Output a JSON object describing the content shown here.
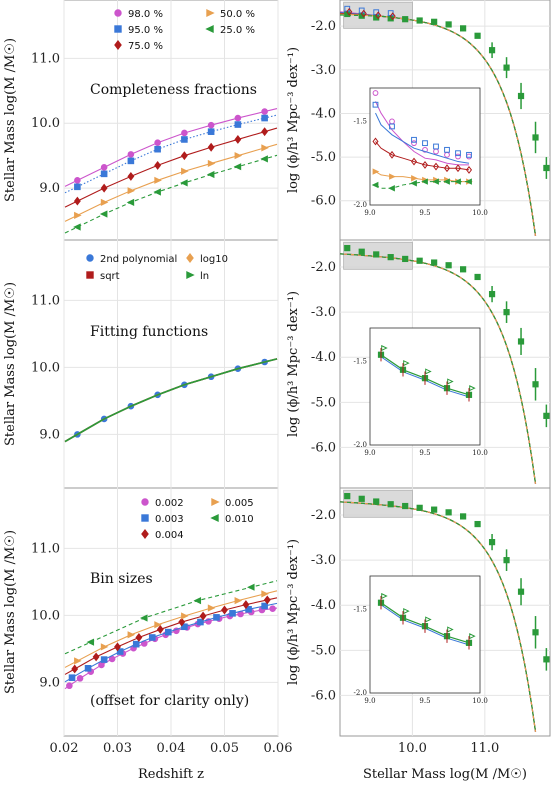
{
  "figure": {
    "xlabel_left": "Redshift z",
    "xlabel_right": "Stellar Mass log(M /M☉)",
    "ylabel_left": "Stellar Mass log(M /M☉)",
    "ylabel_right": "log (ϕ/h³ Mpc⁻³ dex⁻¹)"
  },
  "chart_data": [
    {
      "type": "line",
      "panel": "top-left",
      "annotation": "Completeness fractions",
      "xlim": [
        0.02,
        0.06
      ],
      "ylim": [
        8.2,
        11.9
      ],
      "xticks": [
        0.02,
        0.03,
        0.04,
        0.05,
        0.06
      ],
      "yticks": [
        "9.0",
        "10.0",
        "11.0"
      ],
      "legend_location": "top-right",
      "x": [
        0.0225,
        0.0275,
        0.0325,
        0.0375,
        0.0425,
        0.0475,
        0.0525,
        0.0575
      ],
      "series": [
        {
          "name": "98.0 %",
          "color": "#cc55cc",
          "marker": "circle",
          "linestyle": "solid",
          "values": [
            9.12,
            9.32,
            9.52,
            9.7,
            9.85,
            9.97,
            10.08,
            10.18
          ]
        },
        {
          "name": "95.0 %",
          "color": "#3a78d8",
          "marker": "square",
          "linestyle": "dotted",
          "values": [
            9.02,
            9.22,
            9.42,
            9.6,
            9.75,
            9.87,
            9.98,
            10.08
          ]
        },
        {
          "name": "75.0 %",
          "color": "#b01c1c",
          "marker": "diamond",
          "linestyle": "solid",
          "values": [
            8.8,
            9.0,
            9.18,
            9.35,
            9.5,
            9.63,
            9.75,
            9.87
          ]
        },
        {
          "name": "50.0 %",
          "color": "#e8a050",
          "marker": "triangle-right",
          "linestyle": "solid",
          "values": [
            8.58,
            8.78,
            8.96,
            9.12,
            9.26,
            9.38,
            9.5,
            9.62
          ]
        },
        {
          "name": "25.0 %",
          "color": "#2a9a3a",
          "marker": "triangle-left",
          "linestyle": "dashed",
          "values": [
            8.4,
            8.6,
            8.78,
            8.94,
            9.08,
            9.21,
            9.33,
            9.45
          ]
        }
      ]
    },
    {
      "type": "line",
      "panel": "middle-left",
      "annotation": "Fitting functions",
      "xlim": [
        0.02,
        0.06
      ],
      "ylim": [
        8.2,
        11.9
      ],
      "xticks": [
        0.02,
        0.03,
        0.04,
        0.05,
        0.06
      ],
      "yticks": [
        "9.0",
        "10.0",
        "11.0"
      ],
      "legend_location": "top",
      "x": [
        0.0225,
        0.0275,
        0.0325,
        0.0375,
        0.0425,
        0.0475,
        0.0525,
        0.0575
      ],
      "series": [
        {
          "name": "2nd polynomial",
          "color": "#3a78d8",
          "marker": "circle",
          "values": [
            9.0,
            9.23,
            9.42,
            9.59,
            9.74,
            9.86,
            9.98,
            10.08
          ]
        },
        {
          "name": "sqrt",
          "color": "#b01c1c",
          "marker": "square",
          "values": [
            9.0,
            9.23,
            9.42,
            9.59,
            9.74,
            9.86,
            9.98,
            10.08
          ]
        },
        {
          "name": "log10",
          "color": "#e8a050",
          "marker": "diamond",
          "values": [
            9.0,
            9.23,
            9.42,
            9.59,
            9.74,
            9.86,
            9.98,
            10.08
          ]
        },
        {
          "name": "ln",
          "color": "#2a9a3a",
          "marker": "triangle-right",
          "values": [
            9.0,
            9.23,
            9.42,
            9.59,
            9.74,
            9.86,
            9.98,
            10.08
          ]
        }
      ]
    },
    {
      "type": "line",
      "panel": "bottom-left",
      "annotation": "Bin sizes",
      "annotation2": "(offset for clarity only)",
      "xlim": [
        0.02,
        0.06
      ],
      "ylim": [
        8.2,
        11.9
      ],
      "xticks": [
        "0.02",
        "0.03",
        "0.04",
        "0.05",
        "0.06"
      ],
      "yticks": [
        "9.0",
        "10.0",
        "11.0"
      ],
      "legend_location": "top-right",
      "series": [
        {
          "name": "0.002",
          "color": "#cc55cc",
          "marker": "circle",
          "x": [
            0.021,
            0.023,
            0.025,
            0.027,
            0.029,
            0.031,
            0.033,
            0.035,
            0.037,
            0.039,
            0.041,
            0.043,
            0.045,
            0.047,
            0.049,
            0.051,
            0.053,
            0.055,
            0.057,
            0.059
          ],
          "values": [
            8.95,
            9.06,
            9.16,
            9.26,
            9.35,
            9.43,
            9.51,
            9.58,
            9.65,
            9.71,
            9.77,
            9.82,
            9.87,
            9.91,
            9.95,
            9.99,
            10.02,
            10.05,
            10.08,
            10.1
          ]
        },
        {
          "name": "0.003",
          "color": "#3a78d8",
          "marker": "square",
          "x": [
            0.0215,
            0.0245,
            0.0275,
            0.0305,
            0.0335,
            0.0365,
            0.0395,
            0.0425,
            0.0455,
            0.0485,
            0.0515,
            0.0545,
            0.0575
          ],
          "values": [
            9.07,
            9.21,
            9.34,
            9.46,
            9.57,
            9.67,
            9.75,
            9.83,
            9.9,
            9.97,
            10.03,
            10.09,
            10.14
          ]
        },
        {
          "name": "0.004",
          "color": "#b01c1c",
          "marker": "diamond",
          "x": [
            0.022,
            0.026,
            0.03,
            0.034,
            0.038,
            0.042,
            0.046,
            0.05,
            0.054,
            0.058
          ],
          "values": [
            9.2,
            9.38,
            9.53,
            9.67,
            9.79,
            9.9,
            9.99,
            10.08,
            10.16,
            10.23
          ]
        },
        {
          "name": "0.005",
          "color": "#e8a050",
          "marker": "triangle-right",
          "x": [
            0.0225,
            0.0275,
            0.0325,
            0.0375,
            0.0425,
            0.0475,
            0.0525,
            0.0575
          ],
          "values": [
            9.32,
            9.53,
            9.71,
            9.86,
            9.99,
            10.11,
            10.22,
            10.32
          ]
        },
        {
          "name": "0.010",
          "color": "#2a9a3a",
          "marker": "triangle-left",
          "x": [
            0.025,
            0.035,
            0.045,
            0.055
          ],
          "values": [
            9.6,
            9.96,
            10.22,
            10.42
          ]
        }
      ]
    },
    {
      "type": "scatter",
      "panel": "top-right",
      "xlim": [
        9.0,
        11.9
      ],
      "ylim": [
        -6.9,
        -1.4
      ],
      "yticks": [
        "-2.0",
        "-3.0",
        "-4.0",
        "-5.0",
        "-6.0"
      ],
      "x": [
        9.1,
        9.3,
        9.5,
        9.7,
        9.9,
        10.1,
        10.3,
        10.5,
        10.7,
        10.9,
        11.1,
        11.3,
        11.5,
        11.7
      ],
      "values": [
        -1.72,
        -1.76,
        -1.8,
        -1.82,
        -1.84,
        -1.87,
        -1.9,
        -1.96,
        -2.05,
        -2.22,
        -2.55,
        -2.95,
        -3.6,
        -4.55
      ],
      "tail_point": {
        "x": 11.85,
        "y": -5.25
      },
      "inset": {
        "xlim": [
          9.0,
          10.0
        ],
        "ylim": [
          -2.0,
          -1.3
        ],
        "xticks": [
          "9.0",
          "9.5",
          "10.0"
        ],
        "yticks": [
          "-1.5",
          "-2.0"
        ],
        "x": [
          9.05,
          9.1,
          9.2,
          9.3,
          9.4,
          9.5,
          9.6,
          9.7,
          9.8,
          9.9
        ],
        "series": [
          {
            "name": "98.0 %",
            "values": [
              -1.38,
              -1.45,
              -1.55,
              -1.62,
              -1.68,
              -1.72,
              -1.73,
              -1.75,
              -1.76,
              -1.76
            ]
          },
          {
            "name": "95.0 %",
            "values": [
              -1.45,
              -1.52,
              -1.58,
              -1.62,
              -1.66,
              -1.68,
              -1.7,
              -1.72,
              -1.74,
              -1.75
            ]
          },
          {
            "name": "75.0 %",
            "values": [
              -1.62,
              -1.66,
              -1.7,
              -1.72,
              -1.74,
              -1.76,
              -1.77,
              -1.78,
              -1.78,
              -1.79
            ]
          },
          {
            "name": "50.0 %",
            "values": [
              -1.8,
              -1.82,
              -1.83,
              -1.83,
              -1.84,
              -1.85,
              -1.85,
              -1.85,
              -1.86,
              -1.86
            ]
          },
          {
            "name": "25.0 %",
            "values": [
              -1.88,
              -1.9,
              -1.9,
              -1.88,
              -1.87,
              -1.86,
              -1.86,
              -1.86,
              -1.86,
              -1.86
            ]
          }
        ]
      }
    },
    {
      "type": "scatter",
      "panel": "middle-right",
      "xlim": [
        9.0,
        11.9
      ],
      "ylim": [
        -6.9,
        -1.4
      ],
      "yticks": [
        "-2.0",
        "-3.0",
        "-4.0",
        "-5.0",
        "-6.0"
      ],
      "x": [
        9.1,
        9.3,
        9.5,
        9.7,
        9.9,
        10.1,
        10.3,
        10.5,
        10.7,
        10.9,
        11.1,
        11.3,
        11.5,
        11.7
      ],
      "values": [
        -1.58,
        -1.66,
        -1.72,
        -1.78,
        -1.82,
        -1.86,
        -1.9,
        -1.96,
        -2.05,
        -2.22,
        -2.6,
        -3.0,
        -3.65,
        -4.6
      ],
      "tail_point": {
        "x": 11.85,
        "y": -5.3
      },
      "inset": {
        "xlim": [
          9.0,
          10.0
        ],
        "ylim": [
          -2.0,
          -1.3
        ],
        "xticks": [
          "9.0",
          "9.5",
          "10.0"
        ],
        "yticks": [
          "-1.5",
          "-2.0"
        ],
        "x": [
          9.1,
          9.3,
          9.5,
          9.7,
          9.9
        ],
        "values": [
          -1.46,
          -1.55,
          -1.6,
          -1.66,
          -1.7
        ]
      }
    },
    {
      "type": "scatter",
      "panel": "bottom-right",
      "xlim": [
        9.0,
        11.9
      ],
      "ylim": [
        -6.9,
        -1.4
      ],
      "xticks": [
        "10.0",
        "11.0"
      ],
      "yticks": [
        "-2.0",
        "-3.0",
        "-4.0",
        "-5.0",
        "-6.0"
      ],
      "x": [
        9.1,
        9.3,
        9.5,
        9.7,
        9.9,
        10.1,
        10.3,
        10.5,
        10.7,
        10.9,
        11.1,
        11.3,
        11.5,
        11.7
      ],
      "values": [
        -1.58,
        -1.64,
        -1.7,
        -1.76,
        -1.8,
        -1.84,
        -1.88,
        -1.94,
        -2.03,
        -2.2,
        -2.6,
        -3.0,
        -3.7,
        -4.6
      ],
      "tail_point": {
        "x": 11.85,
        "y": -5.2
      },
      "inset": {
        "xlim": [
          9.0,
          10.0
        ],
        "ylim": [
          -2.0,
          -1.3
        ],
        "xticks": [
          "9.0",
          "9.5",
          "10.0"
        ],
        "yticks": [
          "-1.5",
          "-2.0"
        ],
        "x": [
          9.1,
          9.3,
          9.5,
          9.7,
          9.9
        ],
        "values": [
          -1.46,
          -1.55,
          -1.6,
          -1.66,
          -1.7
        ]
      }
    }
  ]
}
